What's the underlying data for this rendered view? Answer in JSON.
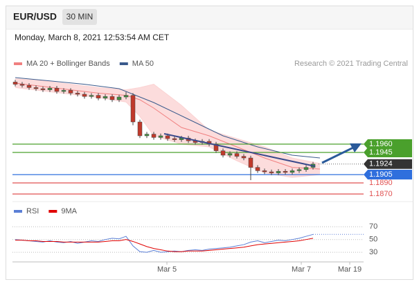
{
  "header": {
    "symbol": "EUR/USD",
    "timeframe": "30 MIN",
    "datetime": "Monday, March 8, 2021 12:53:54 AM CET"
  },
  "chart_data": [
    {
      "type": "candlestick",
      "source": "Research © 2021 Trading Central",
      "xlim": [
        0,
        50
      ],
      "ylim": [
        1.186,
        1.2095
      ],
      "up_color": "#3f8f3f",
      "down_color": "#c0392b",
      "x": [
        0,
        1,
        2,
        3,
        4,
        5,
        6,
        7,
        8,
        9,
        10,
        11,
        12,
        13,
        14,
        15,
        16,
        17,
        18,
        19,
        20,
        21,
        22,
        23,
        24,
        25,
        26,
        27,
        28,
        29,
        30,
        31,
        32,
        33,
        34,
        35,
        36,
        37,
        38,
        39,
        40,
        41,
        42,
        43
      ],
      "open": [
        1.2072,
        1.2068,
        1.2066,
        1.2062,
        1.206,
        1.2058,
        1.2061,
        1.2055,
        1.2057,
        1.2052,
        1.205,
        1.2046,
        1.2048,
        1.2043,
        1.2046,
        1.204,
        1.2045,
        1.2048,
        1.2,
        1.1975,
        1.1978,
        1.1972,
        1.1975,
        1.197,
        1.1968,
        1.1971,
        1.1966,
        1.1963,
        1.1965,
        1.196,
        1.1948,
        1.194,
        1.1943,
        1.1938,
        1.1935,
        1.1918,
        1.1912,
        1.191,
        1.1908,
        1.1911,
        1.1909,
        1.1912,
        1.1914,
        1.1918
      ],
      "high": [
        1.2076,
        1.2072,
        1.207,
        1.2066,
        1.2064,
        1.2065,
        1.2065,
        1.2061,
        1.2061,
        1.2056,
        1.2054,
        1.2052,
        1.2052,
        1.205,
        1.205,
        1.2049,
        1.2054,
        1.2052,
        1.2004,
        1.1982,
        1.1982,
        1.1979,
        1.1979,
        1.1974,
        1.1975,
        1.1975,
        1.197,
        1.1969,
        1.1969,
        1.1964,
        1.1952,
        1.1947,
        1.1947,
        1.1942,
        1.1939,
        1.1922,
        1.1916,
        1.1914,
        1.1915,
        1.1915,
        1.1916,
        1.1918,
        1.1922,
        1.1928
      ],
      "low": [
        1.2064,
        1.2062,
        1.2058,
        1.2056,
        1.2054,
        1.2054,
        1.2051,
        1.2051,
        1.2048,
        1.2046,
        1.2042,
        1.2042,
        1.2039,
        1.2039,
        1.2036,
        1.2036,
        1.2041,
        1.1994,
        1.1971,
        1.1971,
        1.1968,
        1.1968,
        1.1966,
        1.1964,
        1.1964,
        1.1962,
        1.1959,
        1.1959,
        1.1956,
        1.1944,
        1.1936,
        1.1936,
        1.1934,
        1.1931,
        1.1895,
        1.1908,
        1.1906,
        1.1904,
        1.1904,
        1.1905,
        1.1905,
        1.1908,
        1.191,
        1.1914
      ],
      "close": [
        1.2068,
        1.2066,
        1.2062,
        1.206,
        1.2058,
        1.2061,
        1.2055,
        1.2057,
        1.2052,
        1.205,
        1.2046,
        1.2048,
        1.2043,
        1.2046,
        1.204,
        1.2045,
        1.2048,
        1.2,
        1.1975,
        1.1978,
        1.1972,
        1.1975,
        1.197,
        1.1968,
        1.1971,
        1.1966,
        1.1963,
        1.1965,
        1.196,
        1.1948,
        1.194,
        1.1943,
        1.1938,
        1.1935,
        1.1918,
        1.1912,
        1.191,
        1.1908,
        1.1911,
        1.1909,
        1.1912,
        1.1914,
        1.1918,
        1.1924
      ],
      "series": [
        {
          "name": "MA 20 + Bollinger Bands",
          "color": "#f08080",
          "band_color": "#fbd3d3",
          "x": [
            0,
            4,
            8,
            12,
            16,
            18,
            20,
            24,
            28,
            32,
            36,
            40,
            44
          ],
          "values": [
            1.207,
            1.2064,
            1.2058,
            1.2052,
            1.2048,
            1.204,
            1.2025,
            1.199,
            1.1975,
            1.1955,
            1.1935,
            1.1918,
            1.1915
          ],
          "upper": [
            1.2078,
            1.2074,
            1.2068,
            1.2062,
            1.2058,
            1.2062,
            1.2068,
            1.203,
            1.1985,
            1.197,
            1.1955,
            1.1935,
            1.1925
          ],
          "lower": [
            1.2062,
            1.2056,
            1.205,
            1.2044,
            1.2036,
            1.201,
            1.1975,
            1.196,
            1.1955,
            1.193,
            1.1908,
            1.19,
            1.1905
          ]
        },
        {
          "name": "MA 50",
          "color": "#3a5a8c",
          "x": [
            0,
            5,
            10,
            15,
            20,
            25,
            30,
            35,
            40,
            44
          ],
          "values": [
            1.208,
            1.2074,
            1.2068,
            1.206,
            1.2035,
            1.2005,
            1.1975,
            1.1955,
            1.194,
            1.1935
          ]
        }
      ],
      "levels": [
        {
          "value": 1.196,
          "label": "1.1960",
          "color": "#4aa02c",
          "style": "box",
          "line": "solid"
        },
        {
          "value": 1.1945,
          "label": "1.1945",
          "color": "#4aa02c",
          "style": "box",
          "line": "solid"
        },
        {
          "value": 1.1924,
          "label": "1.1924",
          "color": "#333333",
          "style": "box",
          "line": "dotted"
        },
        {
          "value": 1.1905,
          "label": "1.1905",
          "color": "#2f6fdd",
          "style": "box",
          "line": "solid"
        },
        {
          "value": 1.189,
          "label": "1.1890",
          "color": "#e05050",
          "style": "text",
          "line": "solid"
        },
        {
          "value": 1.187,
          "label": "1.1870",
          "color": "#e05050",
          "style": "text",
          "line": "solid"
        }
      ]
    },
    {
      "type": "line",
      "xlim": [
        0,
        50
      ],
      "ylim": [
        15,
        80
      ],
      "yticks": [
        30,
        50,
        70
      ],
      "grid": true,
      "xticks": [
        {
          "value": 21.9,
          "label": "Mar 5"
        },
        {
          "value": 41.3,
          "label": "Mar 7"
        },
        {
          "value": 48.3,
          "label": "Mar 19"
        }
      ],
      "x": [
        0,
        1,
        2,
        3,
        4,
        5,
        6,
        7,
        8,
        9,
        10,
        11,
        12,
        13,
        14,
        15,
        16,
        17,
        18,
        19,
        20,
        21,
        22,
        23,
        24,
        25,
        26,
        27,
        28,
        29,
        30,
        31,
        32,
        33,
        34,
        35,
        36,
        37,
        38,
        39,
        40,
        41,
        42,
        43
      ],
      "series": [
        {
          "name": "RSI",
          "color": "#5b7fd6",
          "values": [
            50,
            49,
            48,
            47,
            46,
            48,
            46,
            45,
            47,
            44,
            46,
            48,
            47,
            50,
            52,
            51,
            55,
            40,
            31,
            30,
            33,
            30,
            31,
            32,
            31,
            33,
            34,
            33,
            35,
            36,
            37,
            38,
            40,
            42,
            46,
            48,
            45,
            47,
            49,
            48,
            50,
            52,
            55,
            58
          ]
        },
        {
          "name": "9MA",
          "color": "#e00000",
          "values": [
            49,
            49,
            48,
            48,
            47,
            47,
            47,
            46,
            46,
            46,
            46,
            46,
            46,
            47,
            48,
            48,
            50,
            47,
            43,
            39,
            36,
            34,
            32,
            31,
            31,
            32,
            32,
            32,
            33,
            34,
            35,
            36,
            37,
            38,
            40,
            42,
            43,
            44,
            45,
            46,
            47,
            48,
            50,
            52
          ]
        }
      ]
    }
  ]
}
